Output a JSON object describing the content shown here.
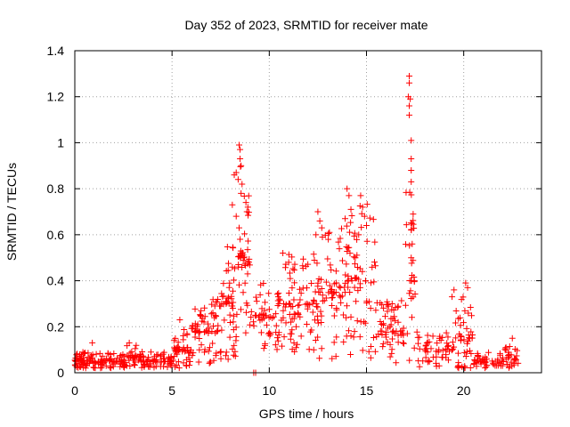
{
  "chart_data": {
    "type": "scatter",
    "title": "Day 352 of 2023, SRMTID for receiver mate",
    "xlabel": "GPS time / hours",
    "ylabel": "SRMTID / TECUs",
    "xlim": [
      0,
      24
    ],
    "ylim": [
      0,
      1.4
    ],
    "x_ticks": [
      0,
      5,
      10,
      15,
      20
    ],
    "x_tick_labels": [
      "0",
      "5",
      "10",
      "15",
      "20"
    ],
    "y_ticks": [
      0,
      0.2,
      0.4,
      0.6,
      0.8,
      1.0,
      1.2,
      1.4
    ],
    "y_tick_labels": [
      "0",
      "0.2",
      "0.4",
      "0.6",
      "0.8",
      "1",
      "1.2",
      "1.4"
    ],
    "grid": true,
    "marker": "+",
    "series_color": "#ff0000",
    "series": [
      {
        "name": "SRMTID",
        "profile": [
          {
            "x_range": [
              0.0,
              1.0
            ],
            "y_center": 0.05,
            "y_spread": 0.04,
            "density": 60
          },
          {
            "x_range": [
              1.0,
              2.5
            ],
            "y_center": 0.05,
            "y_spread": 0.035,
            "density": 55
          },
          {
            "x_range": [
              2.5,
              3.5
            ],
            "y_center": 0.07,
            "y_spread": 0.05,
            "density": 45
          },
          {
            "x_range": [
              3.5,
              5.0
            ],
            "y_center": 0.05,
            "y_spread": 0.04,
            "density": 60
          },
          {
            "x_range": [
              5.0,
              6.0
            ],
            "y_center": 0.1,
            "y_spread": 0.1,
            "density": 45
          },
          {
            "x_range": [
              6.0,
              7.5
            ],
            "y_center": 0.18,
            "y_spread": 0.14,
            "density": 70
          },
          {
            "x_range": [
              7.5,
              8.4
            ],
            "y_center": 0.3,
            "y_spread": 0.25,
            "density": 55
          },
          {
            "x_range": [
              8.4,
              9.0
            ],
            "y_center": 0.5,
            "y_spread": 0.45,
            "density": 40
          },
          {
            "x_range": [
              9.0,
              10.5
            ],
            "y_center": 0.25,
            "y_spread": 0.15,
            "density": 55
          },
          {
            "x_range": [
              10.5,
              12.5
            ],
            "y_center": 0.3,
            "y_spread": 0.22,
            "density": 90
          },
          {
            "x_range": [
              12.5,
              14.0
            ],
            "y_center": 0.35,
            "y_spread": 0.3,
            "density": 70
          },
          {
            "x_range": [
              14.0,
              15.5
            ],
            "y_center": 0.4,
            "y_spread": 0.35,
            "density": 70
          },
          {
            "x_range": [
              15.5,
              17.0
            ],
            "y_center": 0.18,
            "y_spread": 0.14,
            "density": 60
          },
          {
            "x_range": [
              17.0,
              17.5
            ],
            "y_center": 0.4,
            "y_spread": 0.4,
            "density": 30
          },
          {
            "x_range": [
              17.5,
              19.5
            ],
            "y_center": 0.1,
            "y_spread": 0.08,
            "density": 55
          },
          {
            "x_range": [
              19.5,
              20.5
            ],
            "y_center": 0.15,
            "y_spread": 0.18,
            "density": 45
          },
          {
            "x_range": [
              20.5,
              22.0
            ],
            "y_center": 0.05,
            "y_spread": 0.04,
            "density": 50
          },
          {
            "x_range": [
              22.0,
              22.8
            ],
            "y_center": 0.07,
            "y_spread": 0.05,
            "density": 30
          }
        ],
        "highlights": [
          [
            8.45,
            0.99
          ],
          [
            8.5,
            0.97
          ],
          [
            8.5,
            0.93
          ],
          [
            8.55,
            0.9
          ],
          [
            8.3,
            0.87
          ],
          [
            8.4,
            0.84
          ],
          [
            8.2,
            0.86
          ],
          [
            8.6,
            0.82
          ],
          [
            8.55,
            0.78
          ],
          [
            8.8,
            0.74
          ],
          [
            8.9,
            0.72
          ],
          [
            8.85,
            0.7
          ],
          [
            8.1,
            0.73
          ],
          [
            8.3,
            0.68
          ],
          [
            8.45,
            0.63
          ],
          [
            8.5,
            0.58
          ],
          [
            9.2,
            0.0
          ],
          [
            9.3,
            0.0
          ],
          [
            17.2,
            1.29
          ],
          [
            17.2,
            1.26
          ],
          [
            17.15,
            1.2
          ],
          [
            17.25,
            1.19
          ],
          [
            17.2,
            1.16
          ],
          [
            17.2,
            1.12
          ],
          [
            17.3,
            1.01
          ],
          [
            17.3,
            0.93
          ],
          [
            17.3,
            0.88
          ],
          [
            17.3,
            0.83
          ],
          [
            17.4,
            0.69
          ],
          [
            17.3,
            0.62
          ],
          [
            17.35,
            0.56
          ],
          [
            17.3,
            0.5
          ],
          [
            17.3,
            0.4
          ],
          [
            14.0,
            0.8
          ],
          [
            14.1,
            0.77
          ],
          [
            14.2,
            0.71
          ],
          [
            13.9,
            0.67
          ],
          [
            14.7,
            0.77
          ],
          [
            14.8,
            0.72
          ],
          [
            14.9,
            0.68
          ],
          [
            15.0,
            0.64
          ],
          [
            14.6,
            0.6
          ],
          [
            12.5,
            0.7
          ],
          [
            12.6,
            0.66
          ],
          [
            12.7,
            0.63
          ],
          [
            12.4,
            0.6
          ],
          [
            10.7,
            0.52
          ],
          [
            11.0,
            0.48
          ],
          [
            20.1,
            0.39
          ],
          [
            20.2,
            0.37
          ],
          [
            19.5,
            0.36
          ],
          [
            19.4,
            0.33
          ],
          [
            5.4,
            0.23
          ],
          [
            2.8,
            0.13
          ],
          [
            0.9,
            0.13
          ],
          [
            22.5,
            0.15
          ]
        ]
      }
    ]
  }
}
